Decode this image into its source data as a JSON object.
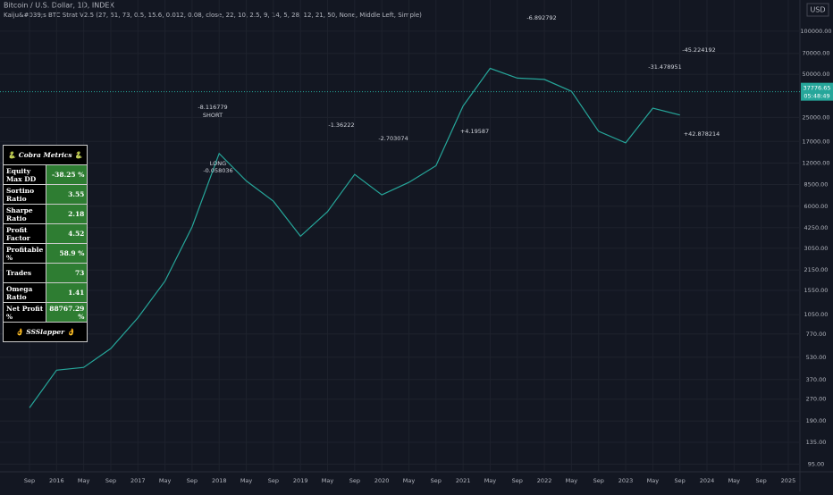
{
  "chart_data": {
    "type": "line",
    "title": "Bitcoin / U.S. Dollar, 1D, INDEX",
    "subtitle": "Kaiju&#039;s BTC Strat V2.5 (27, 51, 73, 0.5, 15.6, 0.012, 0.08, close, 22, 10, 2.5, 9, 14, 5, 28, 12, 21, 50, None, Middle Left, Simple)",
    "currency": "USD",
    "last_price": 37776.65,
    "last_price_label": "37776.65",
    "countdown": "05:48:49",
    "log_scale": true,
    "grid": true,
    "categories": [
      "Sep",
      "2016",
      "May",
      "Sep",
      "2017",
      "May",
      "Sep",
      "2018",
      "May",
      "Sep",
      "2019",
      "May",
      "Sep",
      "2020",
      "May",
      "Sep",
      "2021",
      "May",
      "Sep",
      "2022",
      "May",
      "Sep",
      "2023",
      "May",
      "Sep",
      "2024",
      "May",
      "Sep",
      "2025"
    ],
    "series": [
      {
        "name": "BTCUSD",
        "color": "#26a69a",
        "values": [
          235,
          430,
          450,
          610,
          1000,
          1800,
          4300,
          14000,
          9000,
          6500,
          3700,
          5500,
          10000,
          7200,
          8800,
          11500,
          30000,
          55000,
          47000,
          46000,
          38000,
          20000,
          16600,
          29000,
          26000,
          null,
          null,
          null,
          null
        ]
      }
    ],
    "ylim": [
      76,
      165000
    ],
    "yticks": [
      {
        "value": 100000,
        "label": "100000.00"
      },
      {
        "value": 70000,
        "label": "70000.00"
      },
      {
        "value": 50000,
        "label": "50000.00"
      },
      {
        "value": 25000,
        "label": "25000.00"
      },
      {
        "value": 17000,
        "label": "17000.00"
      },
      {
        "value": 12000,
        "label": "12000.00"
      },
      {
        "value": 8500,
        "label": "8500.00"
      },
      {
        "value": 6000,
        "label": "6000.00"
      },
      {
        "value": 4250,
        "label": "4250.00"
      },
      {
        "value": 3050,
        "label": "3050.00"
      },
      {
        "value": 2150,
        "label": "2150.00"
      },
      {
        "value": 1550,
        "label": "1550.00"
      },
      {
        "value": 1050,
        "label": "1050.00"
      },
      {
        "value": 770,
        "label": "770.00"
      },
      {
        "value": 530,
        "label": "530.00"
      },
      {
        "value": 370,
        "label": "370.00"
      },
      {
        "value": 270,
        "label": "270.00"
      },
      {
        "value": 190,
        "label": "190.00"
      },
      {
        "value": 135,
        "label": "135.00"
      },
      {
        "value": 95,
        "label": "95.00"
      }
    ],
    "annotations": [
      "-8.116779",
      "SHORT",
      "LONG",
      "-0.058036",
      "-1.36222",
      "-2.703074",
      "+4.19587",
      "-6.892792",
      "-45.224192",
      "+42.878214",
      "-31.478951"
    ],
    "metrics": {
      "title": "🐍 Cobra Metrics 🐍",
      "rows": [
        [
          "Equity Max DD",
          "-38.25 %"
        ],
        [
          "Sortino Ratio",
          "3.55"
        ],
        [
          "Sharpe Ratio",
          "2.18"
        ],
        [
          "Profit Factor",
          "4.52"
        ],
        [
          "Profitable %",
          "58.9 %"
        ],
        [
          "Trades",
          "73"
        ],
        [
          "Omega Ratio",
          "1.41"
        ],
        [
          "Net Profit %",
          "88767.29 %"
        ]
      ],
      "footer": "👌 SSSlapper 👌"
    }
  }
}
